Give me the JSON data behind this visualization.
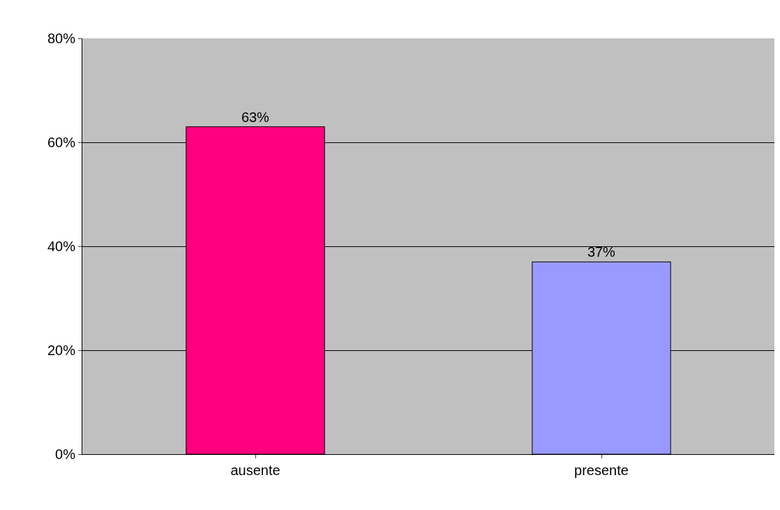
{
  "chart_data": {
    "type": "bar",
    "categories": [
      "ausente",
      "presente"
    ],
    "values": [
      63,
      37
    ],
    "colors": [
      "#ff0080",
      "#9999ff"
    ],
    "value_labels": [
      "63%",
      "37%"
    ],
    "ylim": [
      0,
      80
    ],
    "yticks": [
      {
        "value": 0,
        "label": "0%"
      },
      {
        "value": 20,
        "label": "20%"
      },
      {
        "value": 40,
        "label": "40%"
      },
      {
        "value": 60,
        "label": "60%"
      },
      {
        "value": 80,
        "label": "80%"
      }
    ],
    "grid": "y",
    "legend": false
  }
}
